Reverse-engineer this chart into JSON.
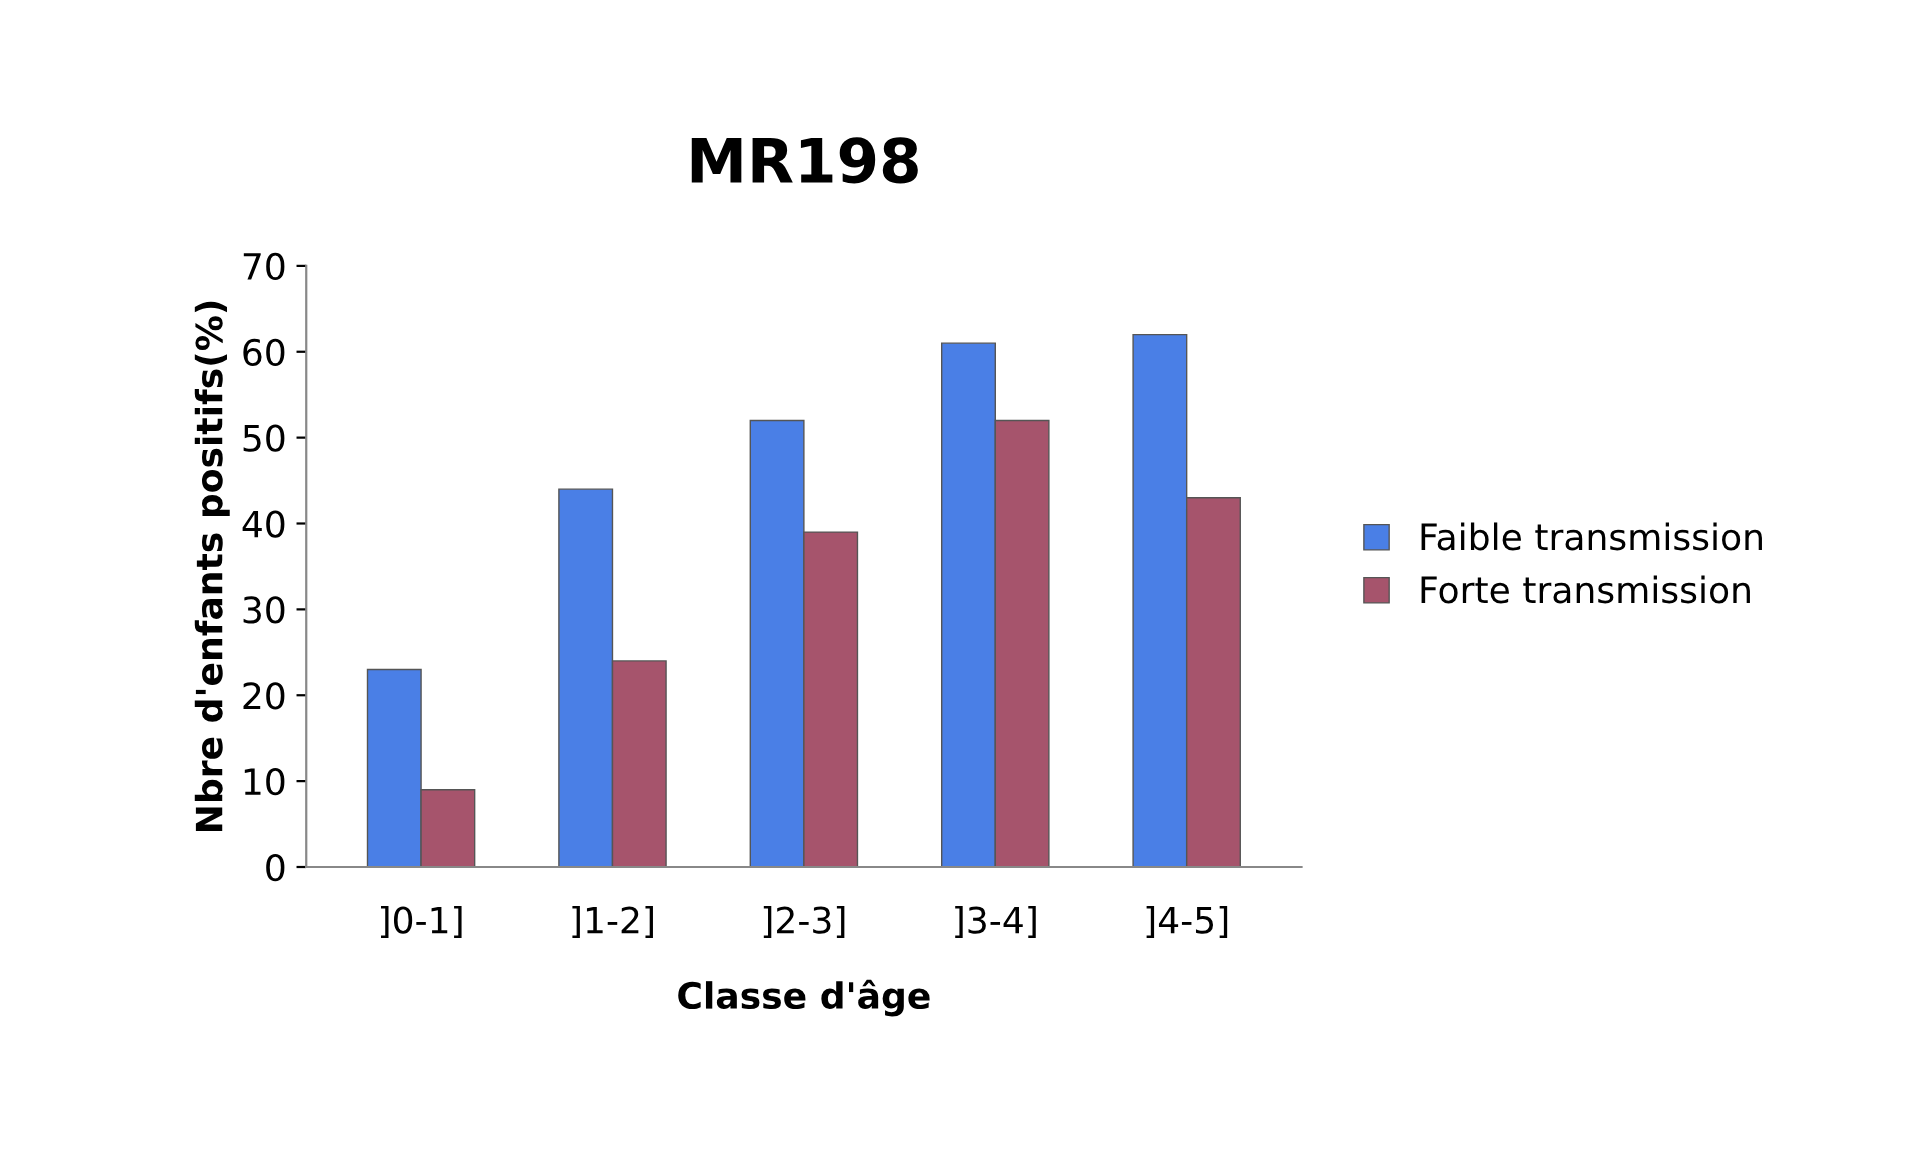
{
  "chart_data": {
    "type": "bar",
    "title": "MR198",
    "xlabel": "Classe d'âge",
    "ylabel": "Nbre d'enfants positifs(%)",
    "categories": [
      "]0-1]",
      "]1-2]",
      "]2-3]",
      "]3-4]",
      "]4-5]"
    ],
    "series": [
      {
        "name": "Faible transmission",
        "color": "#4a7fe6",
        "values": [
          23,
          44,
          52,
          61,
          62
        ]
      },
      {
        "name": "Forte transmission",
        "color": "#a6546c",
        "values": [
          9,
          24,
          39,
          52,
          43
        ]
      }
    ],
    "ylim": [
      0,
      70
    ],
    "yticks": [
      0,
      10,
      20,
      30,
      40,
      50,
      60,
      70
    ],
    "grid": false,
    "legend": "right"
  }
}
